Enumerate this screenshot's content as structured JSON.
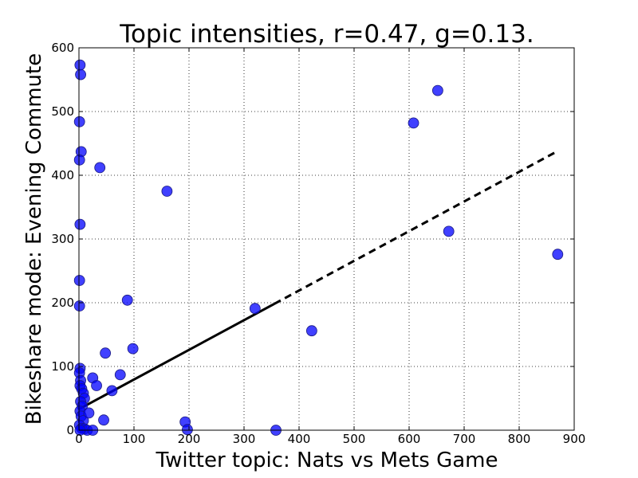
{
  "chart_data": {
    "type": "scatter",
    "title": "Topic intensities,   r=0.47, g=0.13.",
    "xlabel": "Twitter topic: Nats vs Mets Game",
    "ylabel": "Bikeshare mode: Evening Commute",
    "xlim": [
      0,
      900
    ],
    "ylim": [
      0,
      600
    ],
    "xticks": [
      "0",
      "100",
      "200",
      "300",
      "400",
      "500",
      "600",
      "700",
      "800",
      "900"
    ],
    "yticks": [
      "0",
      "100",
      "200",
      "300",
      "400",
      "500",
      "600"
    ],
    "grid": true,
    "point_color": "#0000ff",
    "points": [
      {
        "x": 2,
        "y": 573
      },
      {
        "x": 3,
        "y": 558
      },
      {
        "x": 1,
        "y": 484
      },
      {
        "x": 4,
        "y": 437
      },
      {
        "x": 1,
        "y": 424
      },
      {
        "x": 2,
        "y": 323
      },
      {
        "x": 1,
        "y": 235
      },
      {
        "x": 1,
        "y": 195
      },
      {
        "x": 2,
        "y": 97
      },
      {
        "x": 1,
        "y": 90
      },
      {
        "x": 3,
        "y": 78
      },
      {
        "x": 2,
        "y": 70
      },
      {
        "x": 5,
        "y": 65
      },
      {
        "x": 8,
        "y": 58
      },
      {
        "x": 10,
        "y": 50
      },
      {
        "x": 3,
        "y": 45
      },
      {
        "x": 6,
        "y": 38
      },
      {
        "x": 2,
        "y": 30
      },
      {
        "x": 4,
        "y": 22
      },
      {
        "x": 8,
        "y": 15
      },
      {
        "x": 1,
        "y": 8
      },
      {
        "x": 5,
        "y": 3
      },
      {
        "x": 10,
        "y": 2
      },
      {
        "x": 15,
        "y": 0
      },
      {
        "x": 25,
        "y": 0
      },
      {
        "x": 2,
        "y": 0
      },
      {
        "x": 38,
        "y": 412
      },
      {
        "x": 160,
        "y": 375
      },
      {
        "x": 88,
        "y": 204
      },
      {
        "x": 98,
        "y": 128
      },
      {
        "x": 48,
        "y": 121
      },
      {
        "x": 75,
        "y": 87
      },
      {
        "x": 25,
        "y": 82
      },
      {
        "x": 32,
        "y": 70
      },
      {
        "x": 60,
        "y": 62
      },
      {
        "x": 18,
        "y": 27
      },
      {
        "x": 45,
        "y": 16
      },
      {
        "x": 193,
        "y": 13
      },
      {
        "x": 197,
        "y": 1
      },
      {
        "x": 358,
        "y": 0
      },
      {
        "x": 320,
        "y": 191
      },
      {
        "x": 423,
        "y": 156
      },
      {
        "x": 608,
        "y": 482
      },
      {
        "x": 652,
        "y": 533
      },
      {
        "x": 672,
        "y": 312
      },
      {
        "x": 870,
        "y": 276
      }
    ],
    "fit_line": {
      "x": [
        0,
        870
      ],
      "y": [
        33,
        438
      ],
      "solid_until_x": 355
    }
  }
}
